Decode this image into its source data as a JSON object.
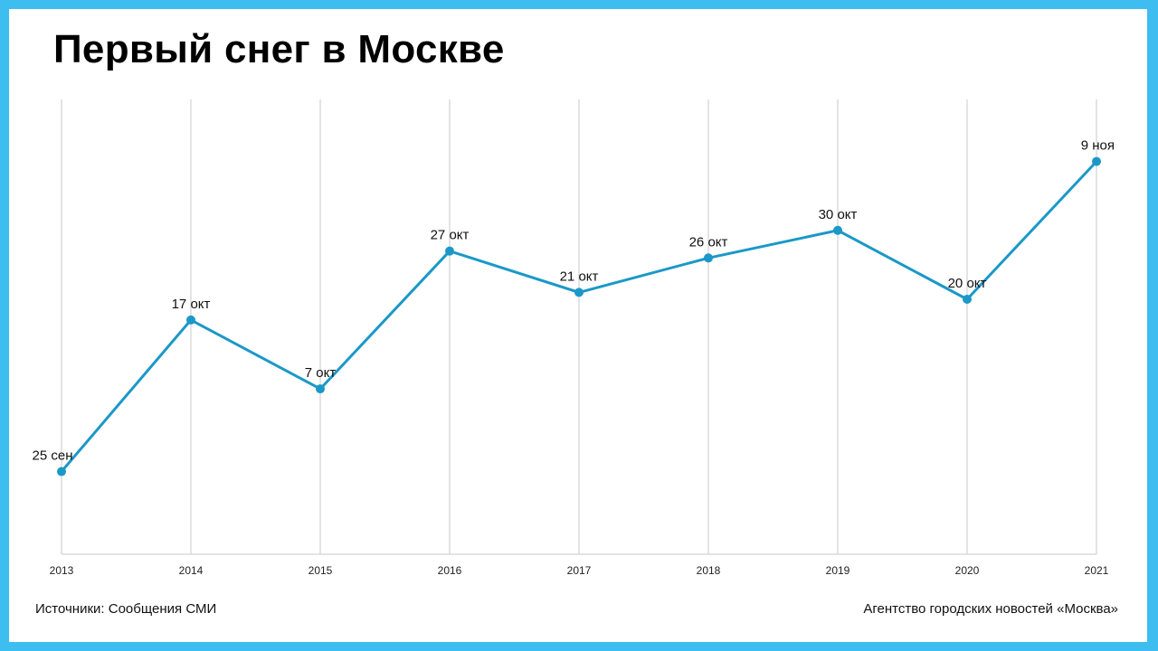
{
  "title": "Первый снег в Москве",
  "footer": {
    "source": "Источники: Сообщения СМИ",
    "agency": "Агентство городских новостей «Москва»"
  },
  "colors": {
    "background": "#ffffff",
    "frame": "#3dbdf0",
    "line": "#1b98c8",
    "grid": "#c8c8c8"
  },
  "chart_data": {
    "type": "line",
    "title": "Первый снег в Москве",
    "xlabel": "",
    "ylabel": "",
    "categories": [
      "2013",
      "2014",
      "2015",
      "2016",
      "2017",
      "2018",
      "2019",
      "2020",
      "2021"
    ],
    "series": [
      {
        "values": [
          "09-25",
          "10-17",
          "10-07",
          "10-27",
          "10-21",
          "10-26",
          "10-30",
          "10-20",
          "11-09"
        ],
        "labels": [
          "25 сен",
          "17 окт",
          "7 окт",
          "27 окт",
          "21 окт",
          "26 окт",
          "30 окт",
          "20 окт",
          "9 ноя"
        ]
      }
    ],
    "ylim": [
      "09-13",
      "11-18"
    ],
    "grid": "vertical",
    "legend": "none"
  }
}
